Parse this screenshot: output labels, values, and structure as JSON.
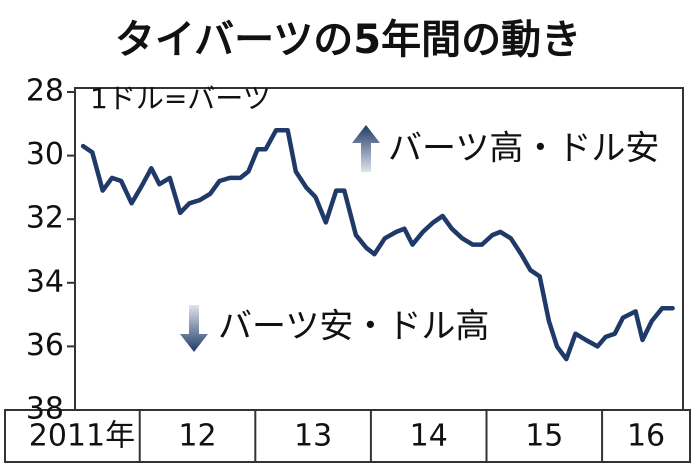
{
  "chart_data": {
    "type": "line",
    "title": "タイバーツの5年間の動き",
    "unit_label": "1ドル=バーツ",
    "annotations": [
      "バーツ高・ドル安",
      "バーツ安・ドル高"
    ],
    "x": [
      2011.51,
      2011.59,
      2011.68,
      2011.76,
      2011.84,
      2011.93,
      2012.01,
      2012.1,
      2012.17,
      2012.26,
      2012.35,
      2012.43,
      2012.52,
      2012.61,
      2012.69,
      2012.78,
      2012.87,
      2012.94,
      2013.02,
      2013.09,
      2013.18,
      2013.28,
      2013.35,
      2013.44,
      2013.52,
      2013.61,
      2013.7,
      2013.77,
      2013.87,
      2013.96,
      2014.03,
      2014.12,
      2014.22,
      2014.29,
      2014.36,
      2014.45,
      2014.54,
      2014.62,
      2014.7,
      2014.79,
      2014.88,
      2014.96,
      2015.05,
      2015.12,
      2015.21,
      2015.3,
      2015.38,
      2015.46,
      2015.54,
      2015.61,
      2015.69,
      2015.77,
      2015.86,
      2015.96,
      2016.03,
      2016.11,
      2016.18,
      2016.29,
      2016.35,
      2016.43,
      2016.52,
      2016.61
    ],
    "series": [
      {
        "color": "#1f3a68",
        "values": [
          29.7,
          29.9,
          31.1,
          30.7,
          30.8,
          31.5,
          31.0,
          30.4,
          30.9,
          30.7,
          31.8,
          31.5,
          31.4,
          31.2,
          30.8,
          30.7,
          30.7,
          30.5,
          29.8,
          29.8,
          29.2,
          29.2,
          30.5,
          31.0,
          31.3,
          32.1,
          31.1,
          31.1,
          32.5,
          32.9,
          33.1,
          32.6,
          32.4,
          32.3,
          32.8,
          32.4,
          32.1,
          31.9,
          32.3,
          32.6,
          32.8,
          32.8,
          32.5,
          32.4,
          32.6,
          33.1,
          33.6,
          33.8,
          35.2,
          36.0,
          36.4,
          35.6,
          35.8,
          36.0,
          35.7,
          35.6,
          35.1,
          34.9,
          35.8,
          35.2,
          34.8,
          34.8
        ]
      }
    ],
    "xlim": [
      2011.44,
      2016.7
    ],
    "xticks": [
      {
        "value": 2011,
        "label": "2011年"
      },
      {
        "value": 2012,
        "label": "12"
      },
      {
        "value": 2013,
        "label": "13"
      },
      {
        "value": 2014,
        "label": "14"
      },
      {
        "value": 2015,
        "label": "15"
      },
      {
        "value": 2016,
        "label": "16"
      }
    ],
    "ylim": [
      28,
      38
    ],
    "yticks": [
      28,
      30,
      32,
      34,
      36,
      38
    ],
    "invert_y": true
  }
}
